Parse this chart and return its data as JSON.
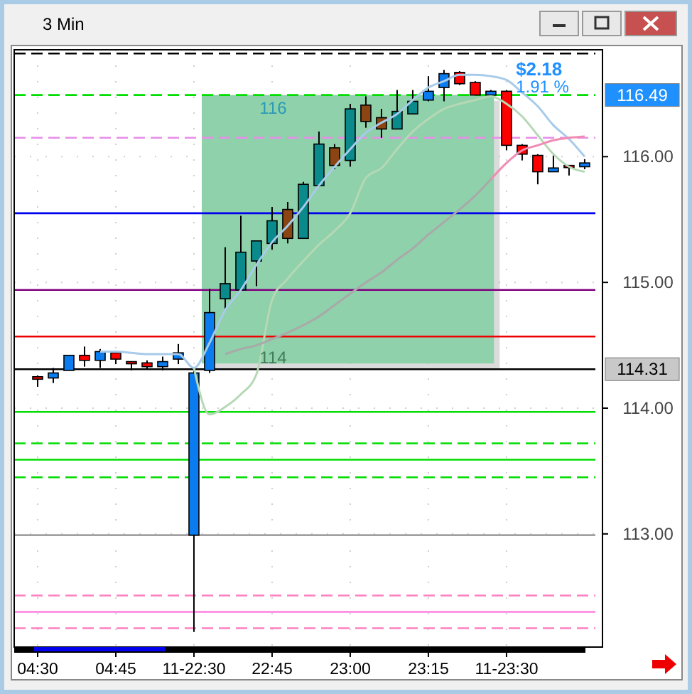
{
  "chart_data": {
    "type": "candlestick",
    "title": "3 Min",
    "categories": [
      "04:30",
      null,
      null,
      null,
      null,
      "04:45",
      null,
      null,
      null,
      null,
      "11-22:30",
      null,
      null,
      null,
      null,
      "22:45",
      null,
      null,
      null,
      null,
      "23:00",
      null,
      null,
      null,
      null,
      "23:15",
      null,
      null,
      null,
      null,
      "11-23:30",
      null,
      null,
      null,
      null,
      null
    ],
    "ohlc": [
      [
        114.25,
        114.26,
        114.17,
        114.23
      ],
      [
        114.24,
        114.32,
        114.2,
        114.28
      ],
      [
        114.3,
        114.42,
        114.3,
        114.42
      ],
      [
        114.42,
        114.49,
        114.33,
        114.38
      ],
      [
        114.38,
        114.47,
        114.32,
        114.45
      ],
      [
        114.44,
        114.45,
        114.35,
        114.39
      ],
      [
        114.37,
        114.37,
        114.3,
        114.36
      ],
      [
        114.36,
        114.38,
        114.31,
        114.33
      ],
      [
        114.33,
        114.41,
        114.3,
        114.37
      ],
      [
        114.39,
        114.51,
        114.35,
        114.44
      ],
      [
        112.99,
        114.3,
        112.22,
        114.28
      ],
      [
        114.3,
        114.95,
        114.28,
        114.76
      ],
      [
        114.87,
        115.28,
        114.79,
        114.99
      ],
      [
        114.94,
        115.53,
        114.94,
        115.24
      ],
      [
        115.17,
        115.33,
        114.97,
        115.33
      ],
      [
        115.31,
        115.6,
        115.26,
        115.49
      ],
      [
        115.58,
        115.64,
        115.31,
        115.35
      ],
      [
        115.35,
        115.8,
        115.35,
        115.78
      ],
      [
        115.77,
        116.2,
        115.76,
        116.1
      ],
      [
        116.07,
        116.1,
        115.9,
        115.93
      ],
      [
        115.97,
        116.42,
        115.92,
        116.38
      ],
      [
        116.41,
        116.48,
        116.23,
        116.28
      ],
      [
        116.31,
        116.38,
        116.15,
        116.22
      ],
      [
        116.22,
        116.53,
        116.22,
        116.36
      ],
      [
        116.34,
        116.53,
        116.34,
        116.44
      ],
      [
        116.45,
        116.64,
        116.44,
        116.52
      ],
      [
        116.55,
        116.69,
        116.44,
        116.66
      ],
      [
        116.67,
        116.68,
        116.57,
        116.58
      ],
      [
        116.59,
        116.6,
        116.49,
        116.49
      ],
      [
        116.49,
        116.53,
        116.49,
        116.52
      ],
      [
        116.52,
        116.53,
        116.05,
        116.09
      ],
      [
        116.09,
        116.1,
        115.97,
        116.02
      ],
      [
        116.01,
        116.02,
        115.78,
        115.88
      ],
      [
        115.88,
        116.01,
        115.88,
        115.91
      ],
      [
        115.93,
        115.93,
        115.85,
        115.92
      ],
      [
        115.92,
        115.98,
        115.9,
        115.95
      ]
    ],
    "colors": [
      "#ff0000",
      "#0a7cf0",
      "#0a7cf0",
      "#ff0000",
      "#0a7cf0",
      "#ff0000",
      "#ff0000",
      "#ff0000",
      "#0a7cf0",
      "#0a7cf0",
      "#0a7cf0",
      "#0a7cf0",
      "#0a8a8a",
      "#0a8a8a",
      "#0a8a8a",
      "#0a8a8a",
      "#8b4513",
      "#0a8a8a",
      "#0a8a8a",
      "#8b4513",
      "#0a8a8a",
      "#8b4513",
      "#8b4513",
      "#0a8a8a",
      "#0a8a8a",
      "#0a7cf0",
      "#0a7cf0",
      "#ff0000",
      "#ff0000",
      "#0a7cf0",
      "#ff0000",
      "#ff0000",
      "#ff0000",
      "#0a7cf0",
      "#ff0000",
      "#0a7cf0"
    ],
    "series": [
      {
        "type": "line",
        "color": "#a8cbea",
        "values": [
          null,
          null,
          null,
          null,
          114.45,
          114.45,
          114.44,
          114.43,
          114.43,
          114.43,
          114.32,
          114.52,
          114.78,
          114.94,
          115.14,
          115.32,
          115.45,
          115.6,
          115.77,
          115.92,
          116.06,
          116.19,
          116.27,
          116.34,
          116.45,
          116.55,
          116.6,
          116.65,
          116.65,
          116.64,
          116.61,
          116.51,
          116.4,
          116.25,
          116.14,
          116
        ]
      },
      {
        "type": "line",
        "color": "#b5d8b5",
        "values": [
          null,
          null,
          null,
          null,
          null,
          null,
          null,
          null,
          null,
          null,
          114.32,
          113.95,
          114.01,
          114.11,
          114.27,
          114.86,
          115.03,
          115.17,
          115.3,
          115.41,
          115.55,
          115.83,
          115.91,
          116.06,
          116.2,
          116.3,
          116.38,
          116.42,
          116.45,
          116.48,
          116.42,
          116.32,
          116.17,
          116.02,
          115.92,
          115.88
        ]
      },
      {
        "type": "line",
        "color": "#a9a9a9",
        "values": [
          null,
          null,
          null,
          null,
          null,
          null,
          null,
          null,
          null,
          null,
          null,
          null,
          114.43,
          114.47,
          114.5,
          114.55,
          114.6,
          114.66,
          114.73,
          114.82,
          114.91,
          115,
          115.08,
          115.18,
          115.27,
          115.38,
          115.48,
          115.58,
          115.69,
          115.82,
          null,
          null,
          null,
          null,
          null,
          null
        ]
      },
      {
        "type": "line",
        "color": "#f08cb4",
        "values": [
          null,
          null,
          null,
          null,
          null,
          null,
          null,
          null,
          null,
          null,
          null,
          null,
          null,
          null,
          null,
          null,
          null,
          null,
          null,
          null,
          null,
          null,
          null,
          null,
          null,
          null,
          null,
          null,
          null,
          115.82,
          115.95,
          116.05,
          116.09,
          116.13,
          116.15,
          116.16
        ]
      }
    ],
    "ref_lines": [
      {
        "axis": "y",
        "value": 116.82,
        "color": "#000000",
        "line_style": "dashed"
      },
      {
        "axis": "y",
        "value": 116.49,
        "label": "116.49",
        "color": "#00dd00",
        "line_style": "dashed"
      },
      {
        "axis": "y",
        "value": 116.15,
        "color": "#e88ee8",
        "line_style": "dashed"
      },
      {
        "axis": "y",
        "value": 115.55,
        "color": "#0000ee",
        "line_style": "solid"
      },
      {
        "axis": "y",
        "value": 114.94,
        "color": "#800080",
        "line_style": "solid"
      },
      {
        "axis": "y",
        "value": 114.57,
        "color": "#ee0000",
        "line_style": "solid"
      },
      {
        "axis": "y",
        "value": 114.31,
        "label": "114.31",
        "color": "#000000",
        "line_style": "solid"
      },
      {
        "axis": "y",
        "value": 113.97,
        "color": "#00dd00",
        "line_style": "solid"
      },
      {
        "axis": "y",
        "value": 113.72,
        "color": "#00dd00",
        "line_style": "dashed"
      },
      {
        "axis": "y",
        "value": 113.59,
        "color": "#00dd00",
        "line_style": "solid"
      },
      {
        "axis": "y",
        "value": 113.45,
        "color": "#00dd00",
        "line_style": "dashed"
      },
      {
        "axis": "y",
        "value": 112.99,
        "color": "#a0a0a0",
        "line_style": "solid"
      },
      {
        "axis": "y",
        "value": 112.51,
        "color": "#ff80c0",
        "line_style": "dashed"
      },
      {
        "axis": "y",
        "value": 112.38,
        "color": "#ff80e0",
        "line_style": "solid"
      },
      {
        "axis": "y",
        "value": 112.25,
        "color": "#ff80c0",
        "line_style": "dashed"
      }
    ],
    "annotations": [
      "116",
      "114",
      "$2.18",
      "1.91 %"
    ],
    "ylim": [
      112.1,
      116.85
    ],
    "yticks": [
      {
        "value": 113,
        "label": "113.00"
      },
      {
        "value": 114,
        "label": "114.00"
      },
      {
        "value": 115,
        "label": "115.00"
      },
      {
        "value": 116,
        "label": "116.00"
      }
    ],
    "grid": true
  }
}
